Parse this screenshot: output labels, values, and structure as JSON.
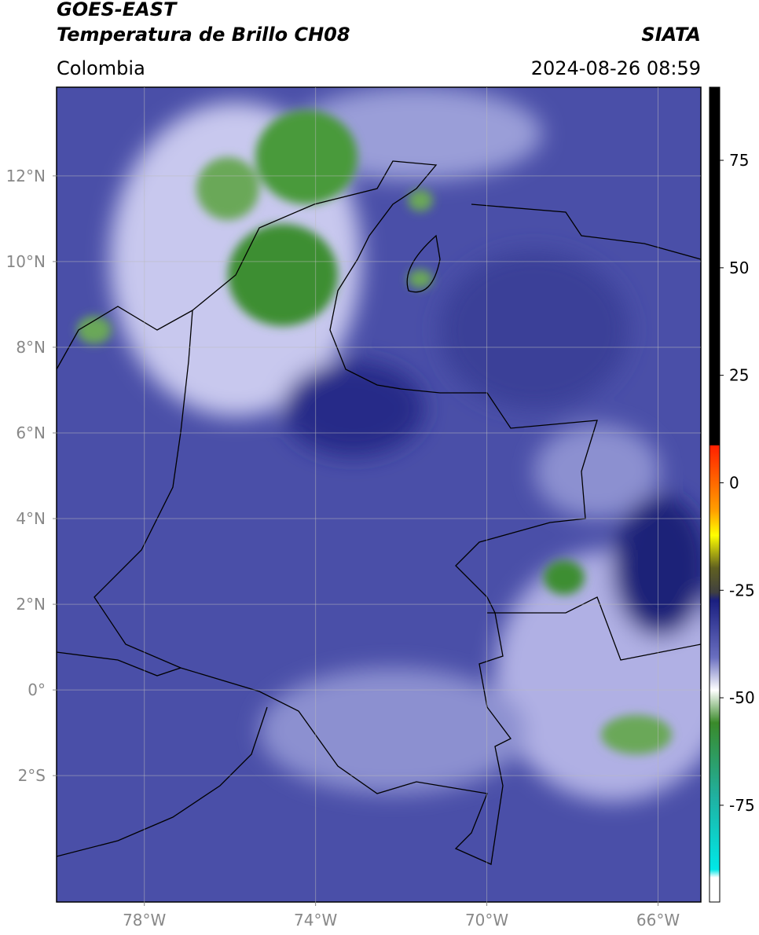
{
  "header": {
    "title": "GOES-EAST",
    "subtitle": "Temperatura de Brillo CH08",
    "region": "Colombia",
    "source": "SIATA",
    "datetime": "2024-08-26 08:59"
  },
  "map": {
    "xlim": [
      -80.05,
      -65
    ],
    "ylim": [
      -4.95,
      14.07
    ],
    "xticks": [
      {
        "value": -78,
        "label": "78°W"
      },
      {
        "value": -74,
        "label": "74°W"
      },
      {
        "value": -70,
        "label": "70°W"
      },
      {
        "value": -66,
        "label": "66°W"
      }
    ],
    "yticks": [
      {
        "value": 12,
        "label": "12°N"
      },
      {
        "value": 10,
        "label": "10°N"
      },
      {
        "value": 8,
        "label": "8°N"
      },
      {
        "value": 6,
        "label": "6°N"
      },
      {
        "value": 4,
        "label": "4°N"
      },
      {
        "value": 2,
        "label": "2°N"
      },
      {
        "value": 0,
        "label": "0°"
      },
      {
        "value": -2,
        "label": "2°S"
      }
    ],
    "grid": true
  },
  "colorbar": {
    "lim": [
      -97.5,
      92
    ],
    "ticks": [
      75,
      50,
      25,
      0,
      -25,
      -50,
      -75
    ]
  }
}
